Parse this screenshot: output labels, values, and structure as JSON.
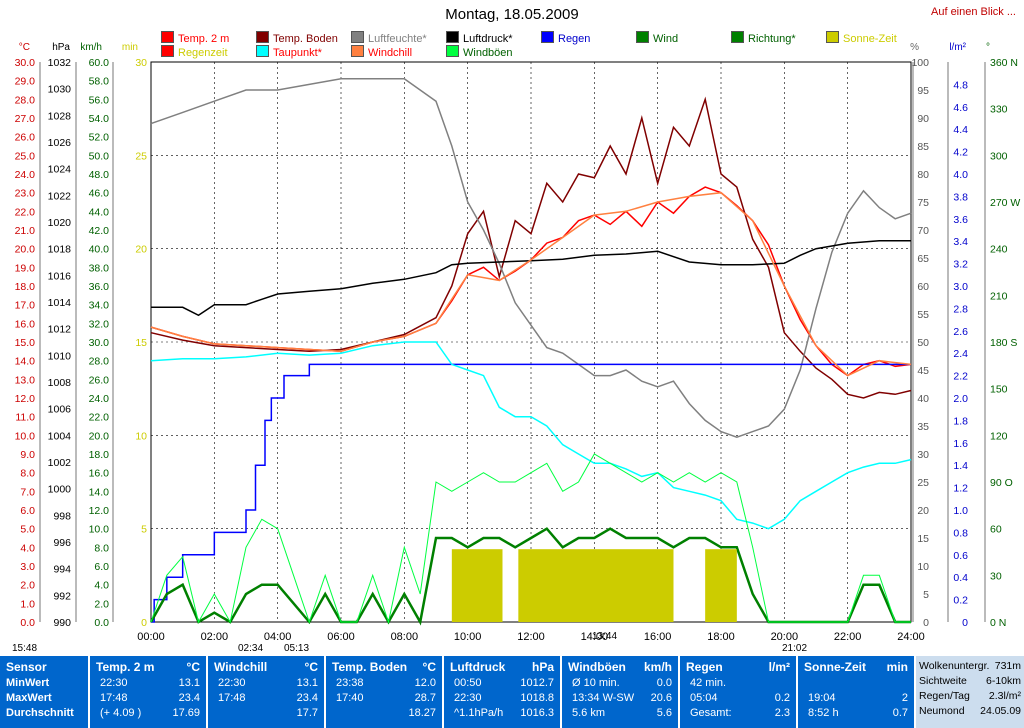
{
  "title": "Montag, 18.05.2009",
  "top_link": "Auf einen Blick ...",
  "legend": [
    {
      "label": "Temp. 2 m",
      "color": "#ff0000"
    },
    {
      "label": "Temp. Boden",
      "color": "#800000"
    },
    {
      "label": "Luftfeuchte*",
      "color": "#808080"
    },
    {
      "label": "Luftdruck*",
      "color": "#000000"
    },
    {
      "label": "Regen",
      "color": "#0000ff"
    },
    {
      "label": "Wind",
      "color": "#008000"
    },
    {
      "label": "Richtung*",
      "color": "#008000"
    },
    {
      "label": "Sonne-Zeit",
      "color": "#cccc00"
    },
    {
      "label": "Regenzeit",
      "color": "#ff0000"
    },
    {
      "label": "Taupunkt*",
      "color": "#00ffff"
    },
    {
      "label": "Windchill",
      "color": "#ff8040"
    },
    {
      "label": "Windböen",
      "color": "#00ff40"
    }
  ],
  "chart_data": {
    "type": "line",
    "title": "Montag, 18.05.2009",
    "x_ticks": [
      "00:00",
      "02:00",
      "04:00",
      "06:00",
      "08:00",
      "10:00",
      "12:00",
      "14:00",
      "16:00",
      "18:00",
      "20:00",
      "22:00",
      "24:00"
    ],
    "axes": {
      "temp": {
        "unit": "°C",
        "min": 0,
        "max": 30,
        "ticks": [
          "0.0",
          "1.0",
          "2.0",
          "3.0",
          "4.0",
          "5.0",
          "6.0",
          "7.0",
          "8.0",
          "9.0",
          "10.0",
          "11.0",
          "12.0",
          "13.0",
          "14.0",
          "15.0",
          "16.0",
          "17.0",
          "18.0",
          "19.0",
          "20.0",
          "21.0",
          "22.0",
          "23.0",
          "24.0",
          "25.0",
          "26.0",
          "27.0",
          "28.0",
          "29.0",
          "30.0"
        ]
      },
      "pressure": {
        "unit": "hPa",
        "min": 990,
        "max": 1032,
        "ticks": [
          "990",
          "992",
          "994",
          "996",
          "998",
          "1000",
          "1002",
          "1004",
          "1006",
          "1008",
          "1010",
          "1012",
          "1014",
          "1016",
          "1018",
          "1020",
          "1022",
          "1024",
          "1026",
          "1028",
          "1030",
          "1032"
        ]
      },
      "wind": {
        "unit": "km/h",
        "min": 0,
        "max": 60,
        "ticks": [
          "0.0",
          "2.0",
          "4.0",
          "6.0",
          "8.0",
          "10.0",
          "12.0",
          "14.0",
          "16.0",
          "18.0",
          "20.0",
          "22.0",
          "24.0",
          "26.0",
          "28.0",
          "30.0",
          "32.0",
          "34.0",
          "36.0",
          "38.0",
          "40.0",
          "42.0",
          "44.0",
          "46.0",
          "48.0",
          "50.0",
          "52.0",
          "54.0",
          "56.0",
          "58.0",
          "60.0"
        ]
      },
      "sun": {
        "unit": "min",
        "min": 0,
        "max": 30,
        "ticks": [
          "0",
          "5",
          "10",
          "15",
          "20",
          "25",
          "30"
        ]
      },
      "humidity": {
        "unit": "%",
        "min": 0,
        "max": 100,
        "ticks": [
          "0",
          "5",
          "10",
          "15",
          "20",
          "25",
          "30",
          "35",
          "40",
          "45",
          "50",
          "55",
          "60",
          "65",
          "70",
          "75",
          "80",
          "85",
          "90",
          "95",
          "100"
        ]
      },
      "rain": {
        "unit": "l/m²",
        "min": 0,
        "max": 5,
        "ticks": [
          "0",
          "0.2",
          "0.4",
          "0.6",
          "0.8",
          "1.0",
          "1.2",
          "1.4",
          "1.6",
          "1.8",
          "2.0",
          "2.2",
          "2.4",
          "2.6",
          "2.8",
          "3.0",
          "3.2",
          "3.4",
          "3.6",
          "3.8",
          "4.0",
          "4.2",
          "4.4",
          "4.6",
          "4.8"
        ]
      },
      "direction": {
        "unit": "°",
        "min": 0,
        "max": 360,
        "ticks": [
          "0 N",
          "30",
          "60",
          "90 O",
          "120",
          "150",
          "180 S",
          "210",
          "240",
          "270 W",
          "300",
          "330",
          "360 N"
        ]
      }
    },
    "series": [
      {
        "name": "Temp. 2 m",
        "axis": "temp",
        "color": "#ff0000",
        "x": [
          0,
          1,
          2,
          3,
          4,
          5,
          6,
          7,
          8,
          9,
          9.5,
          10,
          10.5,
          11,
          11.5,
          12,
          12.5,
          13,
          13.5,
          14,
          14.5,
          15,
          15.5,
          16,
          16.5,
          17,
          17.5,
          18,
          18.5,
          19,
          19.5,
          20,
          20.5,
          21,
          21.5,
          22,
          22.5,
          23,
          23.5,
          24
        ],
        "y": [
          15.8,
          15.3,
          14.9,
          14.8,
          14.7,
          14.6,
          14.5,
          15.0,
          15.3,
          16.0,
          17.2,
          18.6,
          19.0,
          18.3,
          18.8,
          19.4,
          20.3,
          20.6,
          21.5,
          21.8,
          21.3,
          22.0,
          21.2,
          22.5,
          21.9,
          22.8,
          23.3,
          23.0,
          22.3,
          21.5,
          20.2,
          18.0,
          16.2,
          14.8,
          13.8,
          13.2,
          13.8,
          14.0,
          13.7,
          13.8
        ]
      },
      {
        "name": "Temp. Boden",
        "axis": "temp",
        "color": "#800000",
        "x": [
          0,
          1,
          2,
          3,
          4,
          5,
          6,
          7,
          8,
          9,
          9.5,
          10,
          10.5,
          11,
          11.5,
          12,
          12.5,
          13,
          13.5,
          14,
          14.5,
          15,
          15.5,
          16,
          16.5,
          17,
          17.5,
          18,
          18.5,
          19,
          19.5,
          20,
          20.5,
          21,
          21.5,
          22,
          22.5,
          23,
          23.5,
          24
        ],
        "y": [
          15.5,
          15.1,
          14.8,
          14.7,
          14.6,
          14.5,
          14.6,
          15.0,
          15.4,
          16.3,
          18.0,
          20.8,
          22.0,
          18.5,
          21.5,
          20.8,
          23.5,
          22.5,
          24.0,
          23.8,
          25.5,
          24.0,
          27.0,
          23.5,
          26.5,
          25.5,
          28.0,
          24.0,
          23.3,
          20.5,
          19.0,
          15.5,
          14.5,
          13.6,
          13.0,
          12.2,
          12.0,
          12.3,
          12.2,
          12.4
        ]
      },
      {
        "name": "Luftfeuchte*",
        "axis": "humidity",
        "color": "#808080",
        "x": [
          0,
          1,
          2,
          3,
          4,
          5,
          6,
          7,
          8,
          9,
          9.5,
          10,
          10.5,
          11,
          11.5,
          12,
          12.5,
          13,
          13.5,
          14,
          14.5,
          15,
          15.5,
          16,
          16.5,
          17,
          17.5,
          18,
          18.5,
          19,
          19.5,
          20,
          20.5,
          21,
          21.5,
          22,
          22.5,
          23,
          23.5,
          24
        ],
        "y": [
          89,
          91,
          93,
          95,
          95,
          96,
          97,
          97,
          97,
          93,
          85,
          75,
          70,
          64,
          57,
          53,
          49,
          48,
          46,
          44,
          44,
          45,
          43,
          42,
          43,
          39,
          36,
          34,
          33,
          34,
          35,
          38,
          45,
          56,
          66,
          73,
          77,
          74,
          72,
          73
        ]
      },
      {
        "name": "Luftdruck*",
        "axis": "pressure",
        "color": "#000000",
        "x": [
          0,
          1,
          1.5,
          2,
          3,
          3.5,
          4,
          5,
          6,
          7,
          8,
          9,
          9.5,
          10,
          11,
          12,
          13,
          14,
          15,
          16,
          17,
          18,
          19,
          20,
          20.5,
          21,
          22,
          23,
          24
        ],
        "y": [
          1013.6,
          1013.6,
          1013.0,
          1013.8,
          1013.8,
          1014.2,
          1014.6,
          1014.8,
          1015.0,
          1015.4,
          1015.7,
          1016.2,
          1016.8,
          1016.9,
          1017.0,
          1017.1,
          1017.2,
          1017.5,
          1017.6,
          1017.8,
          1017.0,
          1016.8,
          1016.8,
          1016.9,
          1017.5,
          1018.0,
          1018.4,
          1018.6,
          1018.6
        ]
      },
      {
        "name": "Regen",
        "axis": "rain",
        "color": "#0000ff",
        "x": [
          0,
          0.1,
          0.5,
          1,
          1.8,
          2,
          3,
          3.3,
          3.6,
          3.8,
          4,
          4.2,
          4.5,
          4.8,
          5,
          5.2,
          24
        ],
        "y": [
          0,
          0.2,
          0.4,
          0.6,
          0.6,
          0.8,
          1.0,
          1.4,
          1.8,
          2.0,
          2.0,
          2.2,
          2.2,
          2.2,
          2.3,
          2.3,
          2.3
        ]
      },
      {
        "name": "Taupunkt*",
        "axis": "temp",
        "color": "#00ffff",
        "x": [
          0,
          1,
          2,
          3,
          4,
          5,
          6,
          7,
          8,
          9,
          9.5,
          10,
          10.5,
          11,
          11.5,
          12,
          12.5,
          13,
          13.5,
          14,
          14.5,
          15,
          15.5,
          16,
          16.5,
          17,
          17.5,
          18,
          18.5,
          19,
          19.5,
          20,
          20.5,
          21,
          21.5,
          22,
          22.5,
          23,
          23.5,
          24
        ],
        "y": [
          14.0,
          14.1,
          14.1,
          14.2,
          14.4,
          14.3,
          14.4,
          14.8,
          15.0,
          15.0,
          13.8,
          13.5,
          13.2,
          11.5,
          11.0,
          11.0,
          10.5,
          9.5,
          9.0,
          8.5,
          8.5,
          8.2,
          7.8,
          8.0,
          7.2,
          7.0,
          6.8,
          6.5,
          5.5,
          5.3,
          5.0,
          5.5,
          6.5,
          7.0,
          7.5,
          8.0,
          8.3,
          8.5,
          8.5,
          8.7
        ]
      },
      {
        "name": "Windchill",
        "axis": "temp",
        "color": "#ff8040",
        "x": [
          0,
          1,
          2,
          3,
          4,
          5,
          6,
          7,
          8,
          9,
          10,
          11,
          12,
          13,
          14,
          15,
          16,
          17,
          18,
          19,
          20,
          21,
          22,
          23,
          24
        ],
        "y": [
          15.8,
          15.3,
          14.9,
          14.8,
          14.7,
          14.6,
          14.5,
          15.0,
          15.3,
          16.0,
          18.6,
          18.3,
          19.4,
          20.6,
          21.8,
          22.0,
          22.5,
          22.8,
          23.0,
          21.5,
          18.0,
          14.8,
          13.2,
          14.0,
          13.8
        ]
      },
      {
        "name": "Wind",
        "axis": "wind",
        "color": "#008000",
        "x": [
          0,
          0.5,
          1,
          1.5,
          2,
          2.5,
          3,
          3.5,
          4,
          4.5,
          5,
          5.5,
          6,
          6.5,
          7,
          7.5,
          8,
          8.5,
          9,
          9.5,
          10,
          10.5,
          11,
          11.5,
          12,
          12.5,
          13,
          13.5,
          14,
          14.5,
          15,
          15.5,
          16,
          16.5,
          17,
          17.5,
          18,
          18.5,
          19,
          19.5,
          20,
          21,
          22,
          22.5,
          23,
          23.5,
          24
        ],
        "y": [
          0,
          3,
          4,
          0,
          1,
          0,
          3,
          4,
          4,
          2,
          0,
          3,
          0,
          0,
          3,
          0,
          3,
          0,
          9,
          9,
          8,
          9,
          9,
          8,
          9,
          10,
          8,
          9,
          9,
          10,
          9,
          9,
          9,
          8,
          9,
          9,
          8,
          8,
          3,
          0,
          0,
          0,
          0,
          4,
          4,
          0,
          0
        ]
      },
      {
        "name": "Windböen",
        "axis": "wind",
        "color": "#00ff40",
        "x": [
          0,
          0.5,
          1,
          1.5,
          2,
          2.5,
          3,
          3.5,
          4,
          4.5,
          5,
          5.5,
          6,
          6.5,
          7,
          7.5,
          8,
          8.5,
          9,
          9.5,
          10,
          10.5,
          11,
          11.5,
          12,
          12.5,
          13,
          13.5,
          14,
          14.5,
          15,
          15.5,
          16,
          16.5,
          17,
          17.5,
          18,
          18.5,
          19,
          19.5,
          20,
          21,
          22,
          22.5,
          23,
          23.5,
          24
        ],
        "y": [
          0,
          5,
          7,
          0,
          3,
          0,
          8,
          11,
          10,
          5,
          0,
          5,
          0,
          0,
          5,
          0,
          8,
          3,
          15,
          14,
          15,
          16,
          15,
          15,
          16,
          17,
          14,
          15,
          18,
          17,
          16,
          15,
          16,
          15,
          16,
          15,
          16,
          15,
          8,
          0,
          0,
          0,
          0,
          5,
          5,
          0,
          0
        ]
      },
      {
        "name": "Sonne-Zeit",
        "axis": "sun",
        "color": "#cccc00",
        "x": [
          9.5,
          11.1,
          11.6,
          16.5,
          17.5,
          18.5,
          19.2
        ],
        "y": [
          3.9,
          3.9,
          3.9,
          3.9,
          3.9,
          3.9,
          3.9
        ]
      }
    ],
    "time_markers": [
      "15:48",
      "02:34",
      "05:13",
      "13:44",
      "21:02"
    ]
  },
  "stats": {
    "sensor": {
      "header": "Sensor",
      "rows": [
        "MinWert",
        "MaxWert",
        "Durchschnitt"
      ]
    },
    "temp": {
      "header": "Temp. 2 m",
      "unit": "°C",
      "rows": [
        [
          "22:30",
          "13.1"
        ],
        [
          "17:48",
          "23.4"
        ],
        [
          "(+ 4.09 )",
          "17.69"
        ]
      ]
    },
    "windchill": {
      "header": "Windchill",
      "unit": "°C",
      "rows": [
        [
          "22:30",
          "13.1"
        ],
        [
          "17:48",
          "23.4"
        ],
        [
          "",
          "17.7"
        ]
      ]
    },
    "boden": {
      "header": "Temp. Boden",
      "unit": "°C",
      "rows": [
        [
          "23:38",
          "12.0"
        ],
        [
          "17:40",
          "28.7"
        ],
        [
          "",
          "18.27"
        ]
      ]
    },
    "druck": {
      "header": "Luftdruck",
      "unit": "hPa",
      "rows": [
        [
          "00:50",
          "1012.7"
        ],
        [
          "22:30",
          "1018.8"
        ],
        [
          "^1.1hPa/h",
          "1016.3"
        ]
      ]
    },
    "boeen": {
      "header": "Windböen",
      "unit": "km/h",
      "rows": [
        [
          "Ø 10 min.",
          "0.0"
        ],
        [
          "13:34  W-SW",
          "20.6"
        ],
        [
          "5.6 km",
          "5.6"
        ]
      ]
    },
    "regen": {
      "header": "Regen",
      "unit": "l/m²",
      "rows": [
        [
          "42 min.",
          ""
        ],
        [
          "05:04",
          "0.2"
        ],
        [
          "Gesamt:",
          "2.3"
        ]
      ]
    },
    "sonne": {
      "header": "Sonne-Zeit",
      "unit": "min",
      "rows": [
        [
          "",
          ""
        ],
        [
          "19:04",
          "2"
        ],
        [
          "8:52 h",
          "0.7"
        ]
      ]
    },
    "extra": {
      "rows": [
        [
          "Wolkenuntergr.",
          "731m"
        ],
        [
          "Sichtweite",
          "6-10km"
        ],
        [
          "Regen/Tag",
          "2.3l/m²"
        ],
        [
          "Neumond",
          "24.05.09"
        ]
      ]
    }
  }
}
